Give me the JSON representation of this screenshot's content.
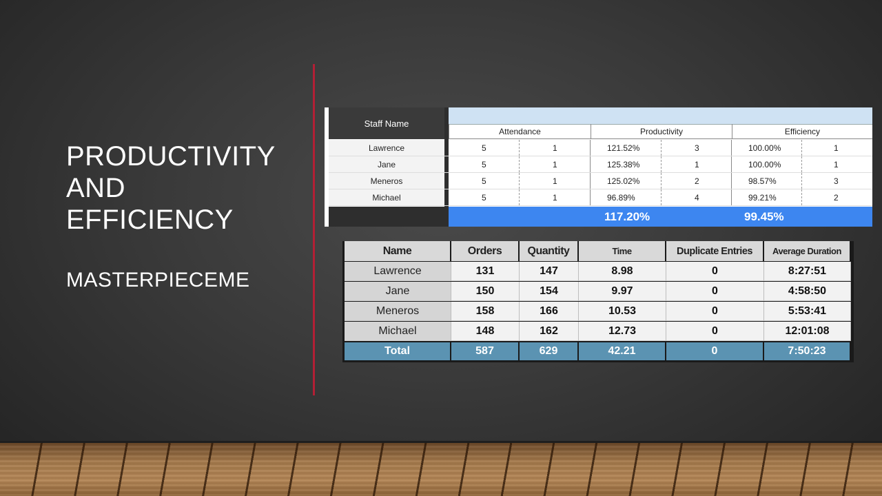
{
  "slide": {
    "title_lines": [
      "PRODUCTIVITY",
      "AND",
      "EFFICIENCY"
    ],
    "subtitle": "MASTERPIECEME",
    "accent_color": "#b31f35"
  },
  "staff_table": {
    "header": "Staff Name",
    "groups": [
      "Attendance",
      "Productivity",
      "Efficiency"
    ],
    "rows": [
      {
        "name": "Lawrence",
        "attendance": "5",
        "attendance_rank": "1",
        "productivity": "121.52%",
        "productivity_rank": "3",
        "efficiency": "100.00%",
        "efficiency_rank": "1"
      },
      {
        "name": "Jane",
        "attendance": "5",
        "attendance_rank": "1",
        "productivity": "125.38%",
        "productivity_rank": "1",
        "efficiency": "100.00%",
        "efficiency_rank": "1"
      },
      {
        "name": "Meneros",
        "attendance": "5",
        "attendance_rank": "1",
        "productivity": "125.02%",
        "productivity_rank": "2",
        "efficiency": "98.57%",
        "efficiency_rank": "3"
      },
      {
        "name": "Michael",
        "attendance": "5",
        "attendance_rank": "1",
        "productivity": "96.89%",
        "productivity_rank": "4",
        "efficiency": "99.21%",
        "efficiency_rank": "2"
      }
    ],
    "totals": {
      "productivity": "117.20%",
      "efficiency": "99.45%"
    },
    "total_bar_color": "#3d86f0",
    "header_bar_color": "#cfe2f3"
  },
  "orders_table": {
    "headers": [
      "Name",
      "Orders",
      "Quantity",
      "Time",
      "Duplicate Entries",
      "Average Duration"
    ],
    "rows": [
      [
        "Lawrence",
        "131",
        "147",
        "8.98",
        "0",
        "8:27:51"
      ],
      [
        "Jane",
        "150",
        "154",
        "9.97",
        "0",
        "4:58:50"
      ],
      [
        "Meneros",
        "158",
        "166",
        "10.53",
        "0",
        "5:53:41"
      ],
      [
        "Michael",
        "148",
        "162",
        "12.73",
        "0",
        "12:01:08"
      ]
    ],
    "total_row": [
      "Total",
      "587",
      "629",
      "42.21",
      "0",
      "7:50:23"
    ],
    "total_row_color": "#5b93b2"
  }
}
